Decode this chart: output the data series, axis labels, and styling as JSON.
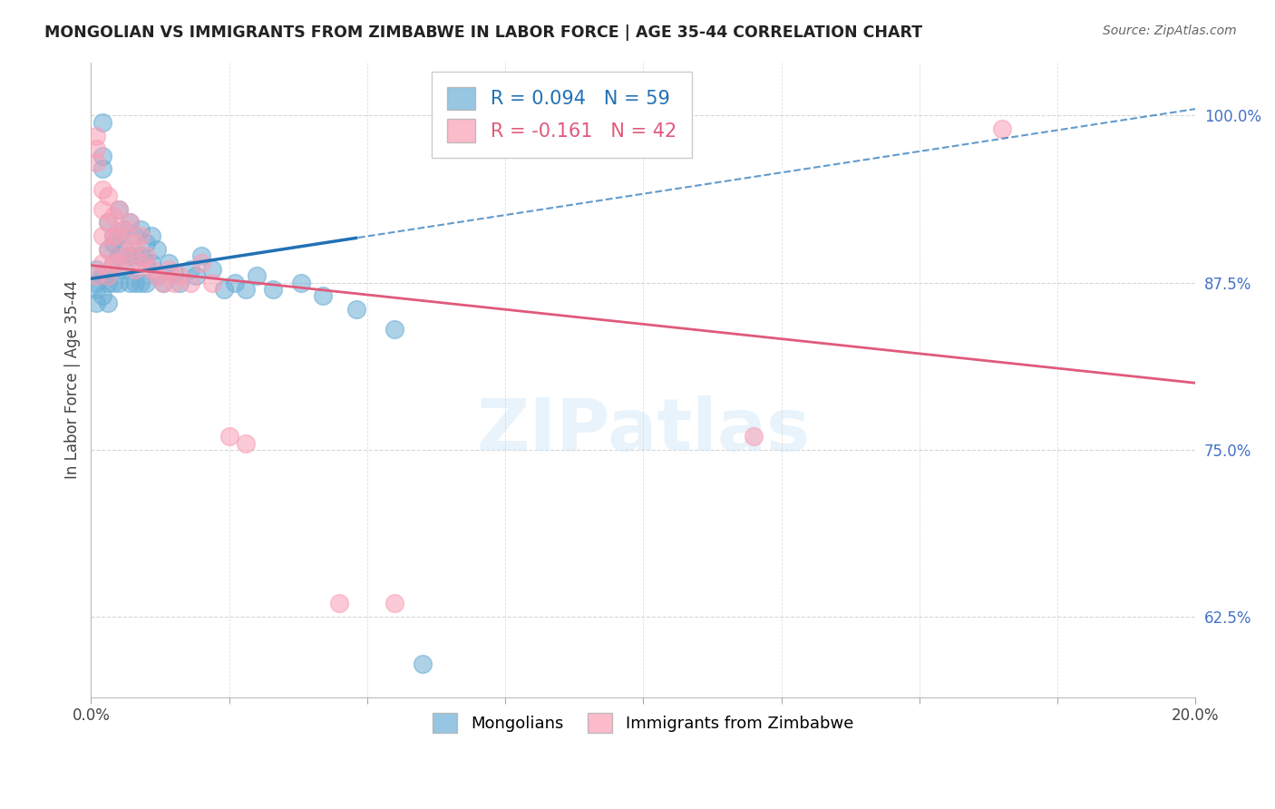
{
  "title": "MONGOLIAN VS IMMIGRANTS FROM ZIMBABWE IN LABOR FORCE | AGE 35-44 CORRELATION CHART",
  "source": "Source: ZipAtlas.com",
  "ylabel": "In Labor Force | Age 35-44",
  "yticks": [
    0.625,
    0.75,
    0.875,
    1.0
  ],
  "ytick_labels": [
    "62.5%",
    "75.0%",
    "87.5%",
    "100.0%"
  ],
  "xlim": [
    0.0,
    0.2
  ],
  "ylim": [
    0.565,
    1.04
  ],
  "legend_blue_r": "R = 0.094",
  "legend_blue_n": "N = 59",
  "legend_pink_r": "R = -0.161",
  "legend_pink_n": "N = 42",
  "legend_blue_label": "Mongolians",
  "legend_pink_label": "Immigrants from Zimbabwe",
  "blue_color": "#6baed6",
  "pink_color": "#fa9fb5",
  "blue_line_color": "#2171b5",
  "pink_line_color": "#e05a7a",
  "blue_scatter_x": [
    0.001,
    0.001,
    0.001,
    0.001,
    0.002,
    0.002,
    0.002,
    0.002,
    0.002,
    0.003,
    0.003,
    0.003,
    0.003,
    0.003,
    0.004,
    0.004,
    0.004,
    0.004,
    0.005,
    0.005,
    0.005,
    0.005,
    0.006,
    0.006,
    0.006,
    0.007,
    0.007,
    0.007,
    0.008,
    0.008,
    0.008,
    0.009,
    0.009,
    0.009,
    0.01,
    0.01,
    0.01,
    0.011,
    0.011,
    0.012,
    0.012,
    0.013,
    0.014,
    0.015,
    0.016,
    0.018,
    0.019,
    0.02,
    0.022,
    0.024,
    0.026,
    0.028,
    0.03,
    0.033,
    0.038,
    0.042,
    0.048,
    0.055,
    0.06
  ],
  "blue_scatter_y": [
    0.885,
    0.875,
    0.87,
    0.86,
    0.995,
    0.97,
    0.96,
    0.88,
    0.865,
    0.92,
    0.9,
    0.88,
    0.875,
    0.86,
    0.91,
    0.905,
    0.89,
    0.875,
    0.93,
    0.91,
    0.895,
    0.875,
    0.915,
    0.9,
    0.885,
    0.92,
    0.895,
    0.875,
    0.91,
    0.895,
    0.875,
    0.915,
    0.895,
    0.875,
    0.905,
    0.89,
    0.875,
    0.91,
    0.89,
    0.9,
    0.88,
    0.875,
    0.89,
    0.882,
    0.875,
    0.885,
    0.88,
    0.895,
    0.885,
    0.87,
    0.875,
    0.87,
    0.88,
    0.87,
    0.875,
    0.865,
    0.855,
    0.84,
    0.59
  ],
  "pink_scatter_x": [
    0.001,
    0.001,
    0.001,
    0.001,
    0.002,
    0.002,
    0.002,
    0.002,
    0.003,
    0.003,
    0.003,
    0.003,
    0.004,
    0.004,
    0.004,
    0.005,
    0.005,
    0.005,
    0.006,
    0.006,
    0.007,
    0.007,
    0.008,
    0.008,
    0.009,
    0.009,
    0.01,
    0.011,
    0.012,
    0.013,
    0.014,
    0.015,
    0.016,
    0.018,
    0.02,
    0.022,
    0.025,
    0.028,
    0.045,
    0.055,
    0.12,
    0.165
  ],
  "pink_scatter_y": [
    0.985,
    0.975,
    0.965,
    0.88,
    0.945,
    0.93,
    0.91,
    0.89,
    0.94,
    0.92,
    0.9,
    0.88,
    0.925,
    0.91,
    0.89,
    0.93,
    0.91,
    0.89,
    0.915,
    0.895,
    0.92,
    0.9,
    0.905,
    0.885,
    0.91,
    0.89,
    0.895,
    0.885,
    0.88,
    0.875,
    0.885,
    0.875,
    0.88,
    0.875,
    0.89,
    0.875,
    0.76,
    0.755,
    0.635,
    0.635,
    0.76,
    0.99
  ],
  "watermark_text": "ZIPatlas",
  "background_color": "#ffffff"
}
